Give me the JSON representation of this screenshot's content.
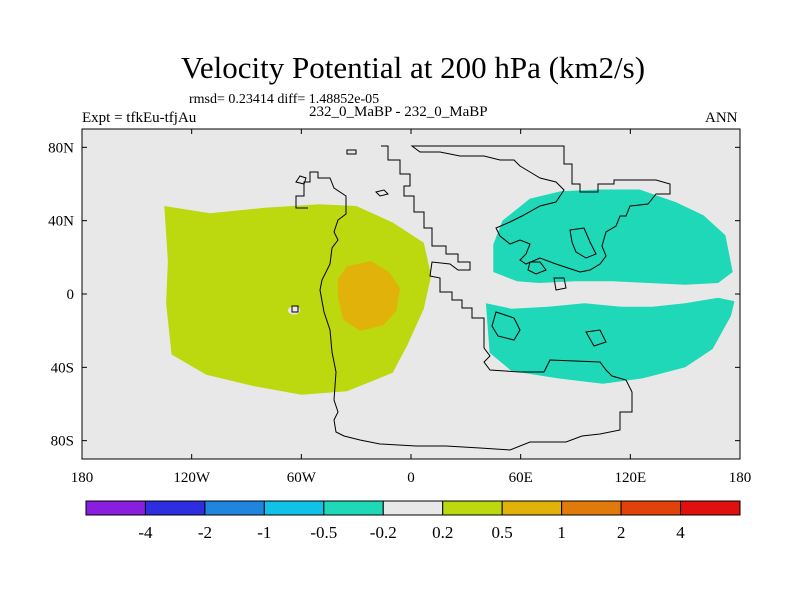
{
  "chart_data": {
    "type": "heatmap",
    "title": "Velocity Potential at 200 hPa (km2/s)",
    "stats": "rmsd= 0.23414  diff= 1.48852e-05",
    "left_label": "Expt = tfkEu-tfjAu",
    "center_label": "232_0_MaBP - 232_0_MaBP",
    "right_label": "ANN",
    "xlim": [
      -180,
      180
    ],
    "ylim": [
      -90,
      90
    ],
    "x_ticks": [
      {
        "value": -180,
        "label": "180"
      },
      {
        "value": -120,
        "label": "120W"
      },
      {
        "value": -60,
        "label": "60W"
      },
      {
        "value": 0,
        "label": "0"
      },
      {
        "value": 60,
        "label": "60E"
      },
      {
        "value": 120,
        "label": "120E"
      },
      {
        "value": 180,
        "label": "180"
      }
    ],
    "y_ticks": [
      {
        "value": 80,
        "label": "80N"
      },
      {
        "value": 40,
        "label": "40N"
      },
      {
        "value": 0,
        "label": "0"
      },
      {
        "value": -40,
        "label": "40S"
      },
      {
        "value": -80,
        "label": "80S"
      }
    ],
    "colorbar": {
      "levels": [
        "-4",
        "-2",
        "-1",
        "-0.5",
        "-0.2",
        "0.2",
        "0.5",
        "1",
        "2",
        "4"
      ],
      "colors": [
        "#8a1ee0",
        "#2e2ee0",
        "#1f86e0",
        "#10c2e8",
        "#1ed8b8",
        "#e8e8e8",
        "#bcd80e",
        "#e0b20a",
        "#e07a0a",
        "#e0420a",
        "#e0100e"
      ]
    },
    "regions": [
      {
        "name": "positive-western-region",
        "range": "0.2 to 0.5",
        "color": "#bcd80e",
        "lonlat": [
          [
            -135,
            48
          ],
          [
            -110,
            44
          ],
          [
            -80,
            47
          ],
          [
            -50,
            49
          ],
          [
            -30,
            48
          ],
          [
            -10,
            39
          ],
          [
            7,
            28
          ],
          [
            11,
            10
          ],
          [
            7,
            -8
          ],
          [
            -2,
            -28
          ],
          [
            -10,
            -43
          ],
          [
            -35,
            -53
          ],
          [
            -60,
            -55
          ],
          [
            -87,
            -50
          ],
          [
            -112,
            -44
          ],
          [
            -131,
            -33
          ],
          [
            -134,
            -5
          ],
          [
            -133,
            18
          ]
        ]
      },
      {
        "name": "positive-western-core",
        "range": "0.5 to 1",
        "color": "#e0b20a",
        "lonlat": [
          [
            -35,
            15
          ],
          [
            -22,
            18
          ],
          [
            -12,
            12
          ],
          [
            -6,
            3
          ],
          [
            -8,
            -9
          ],
          [
            -15,
            -17
          ],
          [
            -28,
            -20
          ],
          [
            -37,
            -14
          ],
          [
            -40,
            -2
          ],
          [
            -40,
            8
          ]
        ]
      },
      {
        "name": "negative-eastern-north-region",
        "range": "-0.5 to -0.2",
        "color": "#1ed8b8",
        "lonlat": [
          [
            45,
            27
          ],
          [
            50,
            40
          ],
          [
            65,
            52
          ],
          [
            82,
            56
          ],
          [
            104,
            57
          ],
          [
            125,
            57
          ],
          [
            145,
            50
          ],
          [
            160,
            43
          ],
          [
            172,
            32
          ],
          [
            176,
            12
          ],
          [
            168,
            6
          ],
          [
            150,
            5
          ],
          [
            130,
            6
          ],
          [
            110,
            7
          ],
          [
            90,
            7
          ],
          [
            70,
            6
          ],
          [
            58,
            7
          ],
          [
            45,
            12
          ]
        ]
      },
      {
        "name": "negative-eastern-south-region",
        "range": "-0.5 to -0.2",
        "color": "#1ed8b8",
        "lonlat": [
          [
            41,
            -5
          ],
          [
            43,
            -32
          ],
          [
            55,
            -42
          ],
          [
            80,
            -46
          ],
          [
            105,
            -49
          ],
          [
            127,
            -46
          ],
          [
            150,
            -40
          ],
          [
            165,
            -30
          ],
          [
            175,
            -12
          ],
          [
            177,
            -4
          ],
          [
            168,
            -2
          ],
          [
            150,
            -5
          ],
          [
            132,
            -7
          ],
          [
            115,
            -7
          ],
          [
            95,
            -5
          ],
          [
            75,
            -7
          ],
          [
            55,
            -8
          ]
        ]
      }
    ]
  }
}
